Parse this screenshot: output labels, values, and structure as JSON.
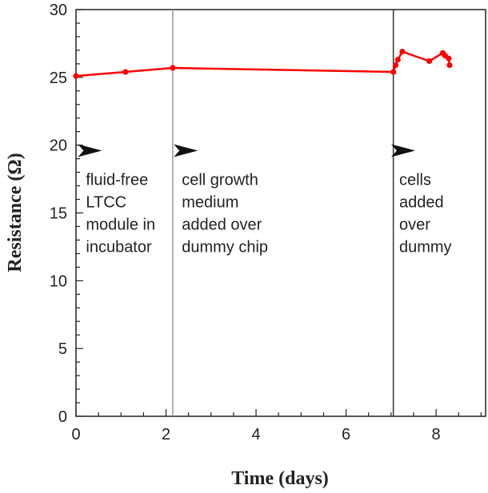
{
  "chart_data": {
    "type": "line",
    "xlabel": "Time (days)",
    "ylabel": "Resistance (Ω)",
    "xlim": [
      0,
      9.1
    ],
    "ylim": [
      0,
      30
    ],
    "xticks": [
      0,
      2,
      4,
      6,
      8
    ],
    "yticks": [
      0,
      5,
      10,
      15,
      20,
      25,
      30
    ],
    "grid": false,
    "series": [
      {
        "color": "#ff0000",
        "x": [
          0,
          1.1,
          2.15,
          7.05,
          7.1,
          7.15,
          7.25,
          7.85,
          8.15,
          8.2,
          8.28,
          8.3
        ],
        "y": [
          25.1,
          25.4,
          25.7,
          25.4,
          25.9,
          26.3,
          26.9,
          26.2,
          26.8,
          26.6,
          26.4,
          25.9
        ]
      }
    ],
    "vlines": [
      {
        "x": 2.15,
        "color": "#999999"
      },
      {
        "x": 7.05,
        "color": "#333333"
      }
    ],
    "annotations": [
      {
        "x": 0.22,
        "y": 19.3,
        "lines": [
          "fluid-free",
          "LTCC",
          "module in",
          "incubator"
        ],
        "arrow_y": 19.6
      },
      {
        "x": 2.35,
        "y": 19.3,
        "lines": [
          "cell growth",
          "medium",
          "added over",
          "dummy chip"
        ],
        "arrow_y": 19.6
      },
      {
        "x": 7.18,
        "y": 19.3,
        "lines": [
          "cells",
          "added",
          "over",
          "dummy"
        ],
        "arrow_y": 19.6
      }
    ]
  }
}
